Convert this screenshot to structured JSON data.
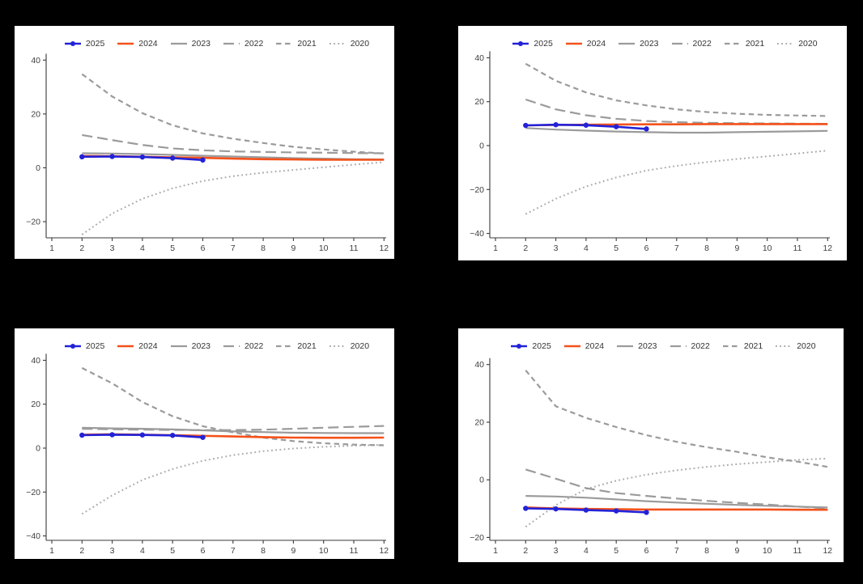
{
  "page": {
    "background_color": "#000000",
    "panel_background_color": "#ffffff",
    "axis_color": "#3a3a3a",
    "tick_label_color": "#3f3f3f",
    "legend_label_color": "#333333"
  },
  "legend": {
    "items": [
      "2025",
      "2024",
      "2023",
      "2022",
      "2021",
      "2020"
    ]
  },
  "series_styles": {
    "2025": {
      "color": "#2222d8",
      "dash": "",
      "width": 2.6,
      "marker": true
    },
    "2024": {
      "color": "#f4511a",
      "dash": "",
      "width": 2.6,
      "marker": false
    },
    "2023": {
      "color": "#9b9b9b",
      "dash": "",
      "width": 2.2,
      "marker": false
    },
    "2022": {
      "color": "#9b9b9b",
      "dash": "13 6",
      "width": 2.2,
      "marker": false
    },
    "2021": {
      "color": "#9b9b9b",
      "dash": "6.5 4.5",
      "width": 2.2,
      "marker": false
    },
    "2020": {
      "color": "#a9a9a9",
      "dash": "1.8 3.4",
      "width": 2.0,
      "marker": false
    }
  },
  "chart_data": [
    {
      "id": "top-left",
      "type": "line",
      "legend_position": "top",
      "grid": false,
      "xticks": [
        1,
        2,
        3,
        4,
        5,
        6,
        7,
        8,
        9,
        10,
        11,
        12
      ],
      "yticks": [
        40,
        20,
        0,
        -20
      ],
      "xlim": [
        0.8,
        12.5
      ],
      "ylim": [
        -26,
        42.5
      ],
      "x": [
        2,
        3,
        4,
        5,
        6,
        7,
        8,
        9,
        10,
        11,
        12
      ],
      "series": [
        {
          "name": "2025",
          "x": [
            2,
            3,
            4,
            5,
            6
          ],
          "values": [
            4.1,
            4.2,
            4.0,
            3.6,
            2.9
          ]
        },
        {
          "name": "2024",
          "values": [
            4.4,
            4.3,
            4.1,
            3.9,
            3.7,
            3.4,
            3.2,
            3.1,
            3.0,
            3.0,
            3.0
          ]
        },
        {
          "name": "2023",
          "values": [
            5.4,
            5.3,
            5.1,
            4.8,
            4.5,
            4.2,
            3.9,
            3.6,
            3.4,
            3.2,
            3.1
          ]
        },
        {
          "name": "2022",
          "values": [
            12.2,
            10.3,
            8.5,
            7.2,
            6.5,
            6.1,
            5.9,
            5.7,
            5.6,
            5.5,
            5.4
          ]
        },
        {
          "name": "2021",
          "values": [
            34.8,
            26.5,
            20.3,
            15.8,
            12.8,
            10.8,
            9.2,
            7.8,
            6.8,
            6.0,
            5.3
          ]
        },
        {
          "name": "2020",
          "values": [
            -24.8,
            -17.0,
            -11.5,
            -7.6,
            -4.9,
            -3.1,
            -1.8,
            -0.8,
            0.2,
            1.2,
            2.1
          ]
        }
      ]
    },
    {
      "id": "top-right",
      "type": "line",
      "legend_position": "top",
      "grid": false,
      "xticks": [
        1,
        2,
        3,
        4,
        5,
        6,
        7,
        8,
        9,
        10,
        11,
        12
      ],
      "yticks": [
        40,
        20,
        0,
        -20,
        -40
      ],
      "xlim": [
        0.8,
        12.5
      ],
      "ylim": [
        -42,
        42
      ],
      "x": [
        2,
        3,
        4,
        5,
        6,
        7,
        8,
        9,
        10,
        11,
        12
      ],
      "series": [
        {
          "name": "2025",
          "x": [
            2,
            3,
            4,
            5,
            6
          ],
          "values": [
            9.2,
            9.5,
            9.3,
            8.6,
            7.6
          ]
        },
        {
          "name": "2024",
          "values": [
            9.2,
            9.4,
            9.5,
            9.6,
            9.7,
            9.7,
            9.8,
            9.8,
            9.8,
            9.8,
            9.8
          ]
        },
        {
          "name": "2023",
          "values": [
            8.0,
            7.3,
            6.8,
            6.4,
            6.1,
            5.9,
            5.9,
            6.1,
            6.3,
            6.5,
            6.7
          ]
        },
        {
          "name": "2022",
          "values": [
            21.0,
            16.5,
            13.8,
            12.2,
            11.2,
            10.7,
            10.4,
            10.2,
            10.1,
            10.0,
            9.9
          ]
        },
        {
          "name": "2021",
          "values": [
            37.3,
            29.5,
            24.2,
            20.6,
            18.3,
            16.5,
            15.3,
            14.5,
            14.0,
            13.7,
            13.5
          ]
        },
        {
          "name": "2020",
          "values": [
            -31.2,
            -24.2,
            -18.6,
            -14.5,
            -11.4,
            -9.2,
            -7.5,
            -6.1,
            -4.9,
            -3.6,
            -2.3
          ]
        }
      ]
    },
    {
      "id": "bottom-left",
      "type": "line",
      "legend_position": "top",
      "grid": false,
      "xticks": [
        1,
        2,
        3,
        4,
        5,
        6,
        7,
        8,
        9,
        10,
        11,
        12
      ],
      "yticks": [
        40,
        20,
        0,
        -20,
        -40
      ],
      "xlim": [
        0.8,
        12.5
      ],
      "ylim": [
        -42,
        42
      ],
      "x": [
        2,
        3,
        4,
        5,
        6,
        7,
        8,
        9,
        10,
        11,
        12
      ],
      "series": [
        {
          "name": "2025",
          "x": [
            2,
            3,
            4,
            5,
            6
          ],
          "values": [
            5.9,
            6.1,
            6.0,
            5.8,
            4.9
          ]
        },
        {
          "name": "2024",
          "values": [
            6.1,
            6.3,
            6.1,
            5.9,
            5.6,
            5.3,
            5.0,
            4.8,
            4.7,
            4.7,
            4.8
          ]
        },
        {
          "name": "2023",
          "values": [
            9.3,
            9.0,
            8.8,
            8.5,
            8.1,
            7.6,
            7.3,
            7.0,
            6.9,
            6.8,
            6.8
          ]
        },
        {
          "name": "2022",
          "values": [
            8.8,
            8.6,
            8.4,
            8.3,
            8.2,
            8.2,
            8.4,
            8.8,
            9.3,
            9.7,
            10.1
          ]
        },
        {
          "name": "2021",
          "values": [
            36.5,
            29.5,
            21.0,
            14.5,
            10.0,
            7.2,
            4.8,
            3.2,
            2.2,
            1.6,
            1.3
          ]
        },
        {
          "name": "2020",
          "values": [
            -30.0,
            -21.5,
            -14.5,
            -9.5,
            -5.8,
            -3.2,
            -1.4,
            -0.2,
            0.6,
            1.1,
            1.5
          ]
        }
      ]
    },
    {
      "id": "bottom-right",
      "type": "line",
      "legend_position": "top",
      "grid": false,
      "xticks": [
        1,
        2,
        3,
        4,
        5,
        6,
        7,
        8,
        9,
        10,
        11,
        12
      ],
      "yticks": [
        40,
        20,
        0,
        -20
      ],
      "xlim": [
        0.8,
        12.5
      ],
      "ylim": [
        -21,
        43
      ],
      "x": [
        2,
        3,
        4,
        5,
        6,
        7,
        8,
        9,
        10,
        11,
        12
      ],
      "series": [
        {
          "name": "2025",
          "x": [
            2,
            3,
            4,
            5,
            6
          ],
          "values": [
            -9.9,
            -10.1,
            -10.5,
            -10.8,
            -11.3
          ]
        },
        {
          "name": "2024",
          "values": [
            -9.6,
            -9.9,
            -10.1,
            -10.2,
            -10.3,
            -10.3,
            -10.3,
            -10.3,
            -10.3,
            -10.4,
            -10.4
          ]
        },
        {
          "name": "2023",
          "values": [
            -5.6,
            -5.8,
            -6.2,
            -6.8,
            -7.4,
            -7.9,
            -8.3,
            -8.7,
            -9.0,
            -9.3,
            -9.6
          ]
        },
        {
          "name": "2022",
          "values": [
            3.6,
            0.4,
            -2.9,
            -4.6,
            -5.6,
            -6.5,
            -7.3,
            -8.0,
            -8.6,
            -9.3,
            -9.9
          ]
        },
        {
          "name": "2021",
          "values": [
            38.0,
            25.5,
            21.5,
            18.3,
            15.5,
            13.2,
            11.3,
            9.7,
            7.8,
            6.3,
            4.5
          ]
        },
        {
          "name": "2020",
          "values": [
            -16.3,
            -8.8,
            -3.2,
            -0.3,
            1.8,
            3.3,
            4.5,
            5.4,
            6.2,
            6.9,
            7.4
          ]
        }
      ]
    }
  ]
}
